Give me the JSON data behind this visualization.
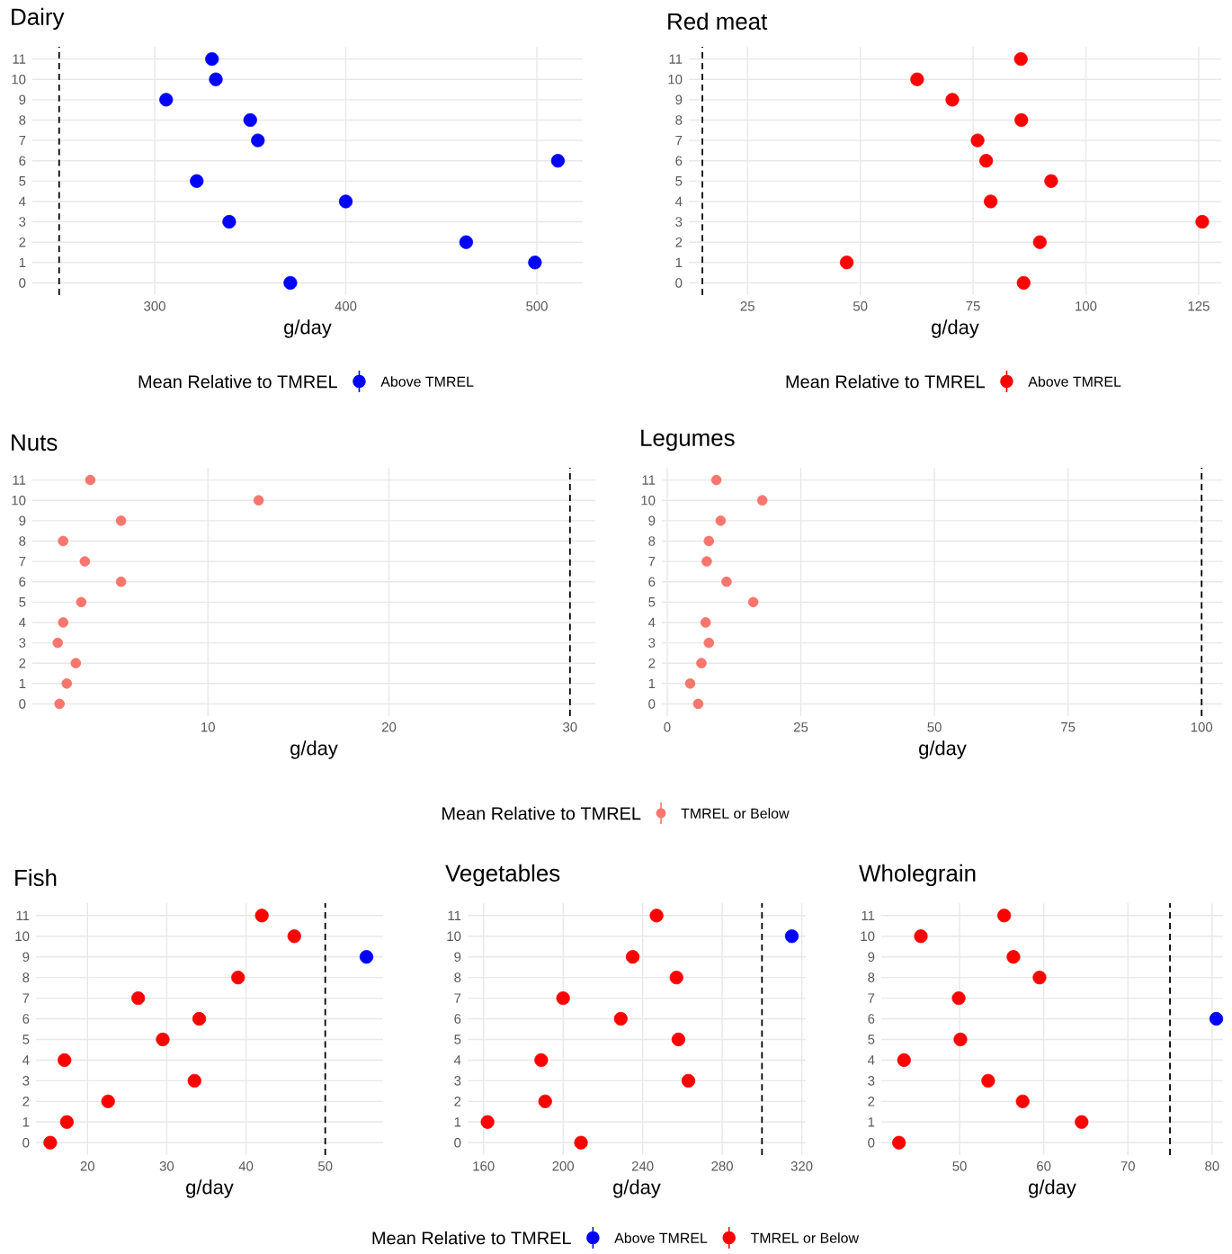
{
  "chart_data": [
    {
      "type": "scatter",
      "orientation": "horizontal",
      "title": "Dairy",
      "xlabel": "g/day",
      "legend_title": "Mean Relative to TMREL",
      "legend": "bottom",
      "grid": true,
      "marker": "circle",
      "categories": [
        "11",
        "10",
        "9",
        "8",
        "7",
        "6",
        "5",
        "4",
        "3",
        "2",
        "1",
        "0"
      ],
      "series": [
        {
          "name": "Above TMREL",
          "color": "#0000ff",
          "values": [
            330,
            332,
            306,
            350,
            354,
            511,
            322,
            400,
            339,
            463,
            499,
            371
          ]
        }
      ],
      "xlim": [
        236,
        524
      ],
      "xticks": [
        300,
        400,
        500
      ],
      "ref_lines": [
        {
          "axis": "x",
          "value": 250,
          "line_style": "dashed"
        }
      ]
    },
    {
      "type": "scatter",
      "orientation": "horizontal",
      "title": "Red meat",
      "xlabel": "g/day",
      "legend_title": "Mean Relative to TMREL",
      "legend": "bottom",
      "grid": true,
      "marker": "circle",
      "categories": [
        "11",
        "10",
        "9",
        "8",
        "7",
        "6",
        "5",
        "4",
        "3",
        "2",
        "1",
        "0"
      ],
      "series": [
        {
          "name": "Above TMREL",
          "color": "#ff0000",
          "values": [
            85.6,
            62.6,
            70.4,
            85.7,
            76,
            77.9,
            92.3,
            78.9,
            125.8,
            89.8,
            47,
            86.2
          ]
        }
      ],
      "xlim": [
        12,
        130
      ],
      "xticks": [
        25,
        50,
        75,
        100,
        125
      ],
      "ref_lines": [
        {
          "axis": "x",
          "value": 15,
          "line_style": "dashed"
        }
      ]
    },
    {
      "type": "scatter",
      "orientation": "horizontal",
      "title": "Nuts",
      "xlabel": "g/day",
      "legend_title": "Mean Relative to TMREL",
      "legend": "bottom",
      "grid": true,
      "marker": "circle",
      "categories": [
        "11",
        "10",
        "9",
        "8",
        "7",
        "6",
        "5",
        "4",
        "3",
        "2",
        "1",
        "0"
      ],
      "series": [
        {
          "name": "TMREL or Below",
          "color": "#f8766d",
          "values": [
            3.5,
            12.8,
            5.2,
            2.0,
            3.2,
            5.2,
            3.0,
            2.0,
            1.7,
            2.7,
            2.2,
            1.8
          ]
        }
      ],
      "xlim": [
        0.3,
        31.4
      ],
      "xticks": [
        10,
        20,
        30
      ],
      "ref_lines": [
        {
          "axis": "x",
          "value": 30,
          "line_style": "dashed"
        }
      ]
    },
    {
      "type": "scatter",
      "orientation": "horizontal",
      "title": "Legumes",
      "xlabel": "g/day",
      "grid": true,
      "marker": "circle",
      "categories": [
        "11",
        "10",
        "9",
        "8",
        "7",
        "6",
        "5",
        "4",
        "3",
        "2",
        "1",
        "0"
      ],
      "series": [
        {
          "color": "#f8766d",
          "values": [
            9.2,
            17.8,
            10,
            7.8,
            7.4,
            11.1,
            16.1,
            7.2,
            7.8,
            6.4,
            4.3,
            5.8
          ]
        }
      ],
      "xlim": [
        -1,
        104
      ],
      "xticks": [
        0,
        25,
        50,
        75,
        100
      ],
      "ref_lines": [
        {
          "axis": "x",
          "value": 100,
          "line_style": "dashed"
        }
      ]
    },
    {
      "type": "scatter",
      "orientation": "horizontal",
      "title": "Fish",
      "xlabel": "g/day",
      "grid": true,
      "marker": "circle",
      "categories": [
        "11",
        "10",
        "9",
        "8",
        "7",
        "6",
        "5",
        "4",
        "3",
        "2",
        "1",
        "0"
      ],
      "series": [
        {
          "color": "#0000ff",
          "values": [
            null,
            null,
            55.2,
            null,
            null,
            null,
            null,
            null,
            null,
            null,
            null,
            null
          ]
        },
        {
          "color": "#ff0000",
          "values": [
            42.0,
            46.1,
            null,
            39.0,
            26.4,
            34.1,
            29.5,
            17.1,
            33.5,
            22.6,
            17.4,
            15.3
          ]
        }
      ],
      "xlim": [
        13.5,
        57.3
      ],
      "xticks": [
        20,
        30,
        40,
        50
      ],
      "ref_lines": [
        {
          "axis": "x",
          "value": 50,
          "line_style": "dashed"
        }
      ]
    },
    {
      "type": "scatter",
      "orientation": "horizontal",
      "title": "Vegetables",
      "xlabel": "g/day",
      "legend_title": "Mean Relative to TMREL",
      "legend": "bottom",
      "grid": true,
      "marker": "circle",
      "categories": [
        "11",
        "10",
        "9",
        "8",
        "7",
        "6",
        "5",
        "4",
        "3",
        "2",
        "1",
        "0"
      ],
      "series": [
        {
          "name": "Above TMREL",
          "color": "#0000ff",
          "values": [
            null,
            315,
            null,
            null,
            null,
            null,
            null,
            null,
            null,
            null,
            null,
            null
          ]
        },
        {
          "name": "TMREL or Below",
          "color": "#ff0000",
          "values": [
            247,
            null,
            235,
            257,
            200,
            229,
            258,
            189,
            263,
            191,
            162,
            209
          ]
        }
      ],
      "xlim": [
        152,
        322
      ],
      "xticks": [
        160,
        200,
        240,
        280,
        320
      ],
      "ref_lines": [
        {
          "axis": "x",
          "value": 300,
          "line_style": "dashed"
        }
      ]
    },
    {
      "type": "scatter",
      "orientation": "horizontal",
      "title": "Wholegrain",
      "xlabel": "g/day",
      "grid": true,
      "marker": "circle",
      "categories": [
        "11",
        "10",
        "9",
        "8",
        "7",
        "6",
        "5",
        "4",
        "3",
        "2",
        "1",
        "0"
      ],
      "series": [
        {
          "color": "#0000ff",
          "values": [
            null,
            null,
            null,
            null,
            null,
            80.5,
            null,
            null,
            null,
            null,
            null,
            null
          ]
        },
        {
          "color": "#ff0000",
          "values": [
            55.3,
            45.4,
            56.4,
            59.5,
            49.9,
            null,
            50.1,
            43.4,
            53.4,
            57.5,
            64.5,
            42.8
          ]
        }
      ],
      "xlim": [
        40.7,
        81.3
      ],
      "xticks": [
        50,
        60,
        70,
        80
      ],
      "ref_lines": [
        {
          "axis": "x",
          "value": 75,
          "line_style": "dashed"
        }
      ]
    }
  ]
}
